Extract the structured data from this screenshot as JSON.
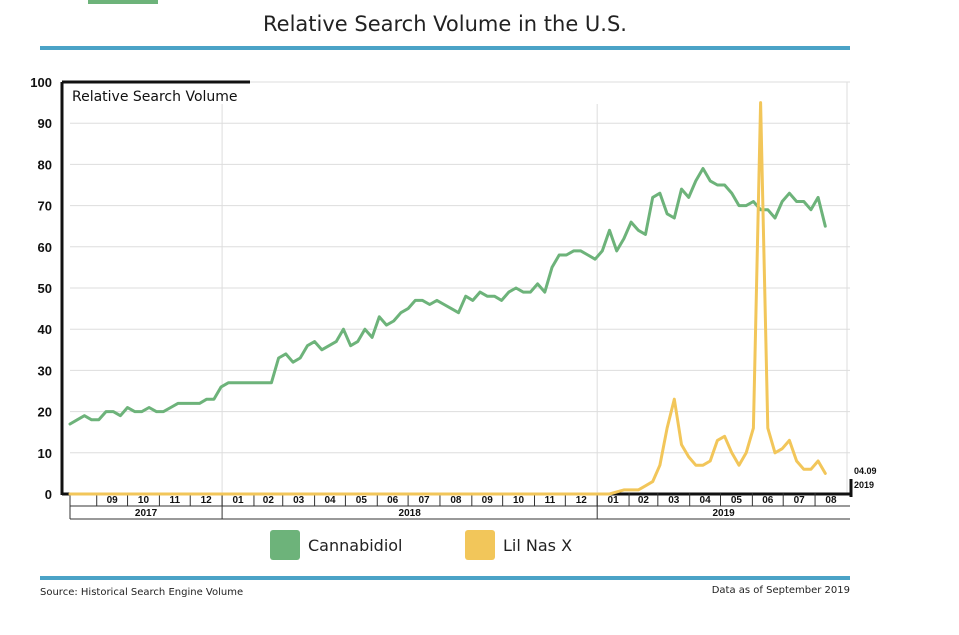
{
  "title": "Relative Search Volume in the U.S.",
  "source": "Source: Historical Search Engine Volume",
  "data_as_of": "Data as of September 2019",
  "colors": {
    "cannabidiol": "#6db37a",
    "lilnasx": "#f2c65a",
    "rule": "#4ba3c7",
    "grid": "#dddddd"
  },
  "chart_data": {
    "type": "line",
    "ylabel": "Relative Search Volume",
    "ylim": [
      0,
      100
    ],
    "yticks": [
      0,
      10,
      20,
      30,
      40,
      50,
      60,
      70,
      80,
      90,
      100
    ],
    "grid": true,
    "legend_position": "bottom",
    "x_start": "2017-08-06",
    "x_end": "2019-09-04",
    "end_annotation": [
      "04.09",
      "2019"
    ],
    "months": [
      {
        "label": "09",
        "start": "2017-09-01",
        "end": "2017-10-01"
      },
      {
        "label": "10",
        "start": "2017-10-01",
        "end": "2017-11-01"
      },
      {
        "label": "11",
        "start": "2017-11-01",
        "end": "2017-12-01"
      },
      {
        "label": "12",
        "start": "2017-12-01",
        "end": "2018-01-01"
      },
      {
        "label": "01",
        "start": "2018-01-01",
        "end": "2018-02-01"
      },
      {
        "label": "02",
        "start": "2018-02-01",
        "end": "2018-03-01"
      },
      {
        "label": "03",
        "start": "2018-03-01",
        "end": "2018-04-01"
      },
      {
        "label": "04",
        "start": "2018-04-01",
        "end": "2018-05-01"
      },
      {
        "label": "05",
        "start": "2018-05-01",
        "end": "2018-06-01"
      },
      {
        "label": "06",
        "start": "2018-06-01",
        "end": "2018-07-01"
      },
      {
        "label": "07",
        "start": "2018-07-01",
        "end": "2018-08-01"
      },
      {
        "label": "08",
        "start": "2018-08-01",
        "end": "2018-09-01"
      },
      {
        "label": "09",
        "start": "2018-09-01",
        "end": "2018-10-01"
      },
      {
        "label": "10",
        "start": "2018-10-01",
        "end": "2018-11-01"
      },
      {
        "label": "11",
        "start": "2018-11-01",
        "end": "2018-12-01"
      },
      {
        "label": "12",
        "start": "2018-12-01",
        "end": "2019-01-01"
      },
      {
        "label": "01",
        "start": "2019-01-01",
        "end": "2019-02-01"
      },
      {
        "label": "02",
        "start": "2019-02-01",
        "end": "2019-03-01"
      },
      {
        "label": "03",
        "start": "2019-03-01",
        "end": "2019-04-01"
      },
      {
        "label": "04",
        "start": "2019-04-01",
        "end": "2019-05-01"
      },
      {
        "label": "05",
        "start": "2019-05-01",
        "end": "2019-06-01"
      },
      {
        "label": "06",
        "start": "2019-06-01",
        "end": "2019-07-01"
      },
      {
        "label": "07",
        "start": "2019-07-01",
        "end": "2019-08-01"
      },
      {
        "label": "08",
        "start": "2019-08-01",
        "end": "2019-09-01"
      }
    ],
    "years": [
      {
        "label": "2017",
        "start": "2017-08-06",
        "end": "2018-01-01"
      },
      {
        "label": "2018",
        "start": "2018-01-01",
        "end": "2019-01-01"
      },
      {
        "label": "2019",
        "start": "2019-01-01",
        "end": "2019-09-04"
      }
    ],
    "series": [
      {
        "name": "Cannabidiol",
        "points": [
          [
            "2017-08-06",
            17
          ],
          [
            "2017-08-13",
            18
          ],
          [
            "2017-08-20",
            19
          ],
          [
            "2017-08-27",
            18
          ],
          [
            "2017-09-03",
            18
          ],
          [
            "2017-09-10",
            20
          ],
          [
            "2017-09-17",
            20
          ],
          [
            "2017-09-24",
            19
          ],
          [
            "2017-10-01",
            21
          ],
          [
            "2017-10-08",
            20
          ],
          [
            "2017-10-15",
            20
          ],
          [
            "2017-10-22",
            21
          ],
          [
            "2017-10-29",
            20
          ],
          [
            "2017-11-05",
            20
          ],
          [
            "2017-11-12",
            21
          ],
          [
            "2017-11-19",
            22
          ],
          [
            "2017-11-26",
            22
          ],
          [
            "2017-12-03",
            22
          ],
          [
            "2017-12-10",
            22
          ],
          [
            "2017-12-17",
            23
          ],
          [
            "2017-12-24",
            23
          ],
          [
            "2017-12-31",
            26
          ],
          [
            "2018-01-07",
            27
          ],
          [
            "2018-01-14",
            27
          ],
          [
            "2018-01-21",
            27
          ],
          [
            "2018-01-28",
            27
          ],
          [
            "2018-02-04",
            27
          ],
          [
            "2018-02-11",
            27
          ],
          [
            "2018-02-18",
            27
          ],
          [
            "2018-02-25",
            33
          ],
          [
            "2018-03-04",
            34
          ],
          [
            "2018-03-11",
            32
          ],
          [
            "2018-03-18",
            33
          ],
          [
            "2018-03-25",
            36
          ],
          [
            "2018-04-01",
            37
          ],
          [
            "2018-04-08",
            35
          ],
          [
            "2018-04-15",
            36
          ],
          [
            "2018-04-22",
            37
          ],
          [
            "2018-04-29",
            40
          ],
          [
            "2018-05-06",
            36
          ],
          [
            "2018-05-13",
            37
          ],
          [
            "2018-05-20",
            40
          ],
          [
            "2018-05-27",
            38
          ],
          [
            "2018-06-03",
            43
          ],
          [
            "2018-06-10",
            41
          ],
          [
            "2018-06-17",
            42
          ],
          [
            "2018-06-24",
            44
          ],
          [
            "2018-07-01",
            45
          ],
          [
            "2018-07-08",
            47
          ],
          [
            "2018-07-15",
            47
          ],
          [
            "2018-07-22",
            46
          ],
          [
            "2018-07-29",
            47
          ],
          [
            "2018-08-05",
            46
          ],
          [
            "2018-08-12",
            45
          ],
          [
            "2018-08-19",
            44
          ],
          [
            "2018-08-26",
            48
          ],
          [
            "2018-09-02",
            47
          ],
          [
            "2018-09-09",
            49
          ],
          [
            "2018-09-16",
            48
          ],
          [
            "2018-09-23",
            48
          ],
          [
            "2018-09-30",
            47
          ],
          [
            "2018-10-07",
            49
          ],
          [
            "2018-10-14",
            50
          ],
          [
            "2018-10-21",
            49
          ],
          [
            "2018-10-28",
            49
          ],
          [
            "2018-11-04",
            51
          ],
          [
            "2018-11-11",
            49
          ],
          [
            "2018-11-18",
            55
          ],
          [
            "2018-11-25",
            58
          ],
          [
            "2018-12-02",
            58
          ],
          [
            "2018-12-09",
            59
          ],
          [
            "2018-12-16",
            59
          ],
          [
            "2018-12-23",
            58
          ],
          [
            "2018-12-30",
            57
          ],
          [
            "2019-01-06",
            59
          ],
          [
            "2019-01-13",
            64
          ],
          [
            "2019-01-20",
            59
          ],
          [
            "2019-01-27",
            62
          ],
          [
            "2019-02-03",
            66
          ],
          [
            "2019-02-10",
            64
          ],
          [
            "2019-02-17",
            63
          ],
          [
            "2019-02-24",
            72
          ],
          [
            "2019-03-03",
            73
          ],
          [
            "2019-03-10",
            68
          ],
          [
            "2019-03-17",
            67
          ],
          [
            "2019-03-24",
            74
          ],
          [
            "2019-03-31",
            72
          ],
          [
            "2019-04-07",
            76
          ],
          [
            "2019-04-14",
            79
          ],
          [
            "2019-04-21",
            76
          ],
          [
            "2019-04-28",
            75
          ],
          [
            "2019-05-05",
            75
          ],
          [
            "2019-05-12",
            73
          ],
          [
            "2019-05-19",
            70
          ],
          [
            "2019-05-26",
            70
          ],
          [
            "2019-06-02",
            71
          ],
          [
            "2019-06-09",
            69
          ],
          [
            "2019-06-16",
            69
          ],
          [
            "2019-06-23",
            67
          ],
          [
            "2019-06-30",
            71
          ],
          [
            "2019-07-07",
            73
          ],
          [
            "2019-07-14",
            71
          ],
          [
            "2019-07-21",
            71
          ],
          [
            "2019-07-28",
            69
          ],
          [
            "2019-08-04",
            72
          ],
          [
            "2019-08-11",
            65
          ]
        ]
      },
      {
        "name": "Lil Nas X",
        "points": [
          [
            "2017-08-06",
            0
          ],
          [
            "2018-12-30",
            0
          ],
          [
            "2019-01-06",
            0
          ],
          [
            "2019-01-13",
            0
          ],
          [
            "2019-01-20",
            0.5
          ],
          [
            "2019-01-27",
            1
          ],
          [
            "2019-02-03",
            1
          ],
          [
            "2019-02-10",
            1
          ],
          [
            "2019-02-17",
            2
          ],
          [
            "2019-02-24",
            3
          ],
          [
            "2019-03-03",
            7
          ],
          [
            "2019-03-10",
            16
          ],
          [
            "2019-03-17",
            23
          ],
          [
            "2019-03-24",
            12
          ],
          [
            "2019-03-31",
            9
          ],
          [
            "2019-04-07",
            7
          ],
          [
            "2019-04-14",
            7
          ],
          [
            "2019-04-21",
            8
          ],
          [
            "2019-04-28",
            13
          ],
          [
            "2019-05-05",
            14
          ],
          [
            "2019-05-12",
            10
          ],
          [
            "2019-05-19",
            7
          ],
          [
            "2019-05-26",
            10
          ],
          [
            "2019-06-02",
            16
          ],
          [
            "2019-06-09",
            95
          ],
          [
            "2019-06-16",
            16
          ],
          [
            "2019-06-23",
            10
          ],
          [
            "2019-06-30",
            11
          ],
          [
            "2019-07-07",
            13
          ],
          [
            "2019-07-14",
            8
          ],
          [
            "2019-07-21",
            6
          ],
          [
            "2019-07-28",
            6
          ],
          [
            "2019-08-04",
            8
          ],
          [
            "2019-08-11",
            5
          ]
        ]
      }
    ]
  },
  "legend": [
    {
      "name": "Cannabidiol",
      "color": "#6db37a"
    },
    {
      "name": "Lil Nas X",
      "color": "#f2c65a"
    }
  ]
}
